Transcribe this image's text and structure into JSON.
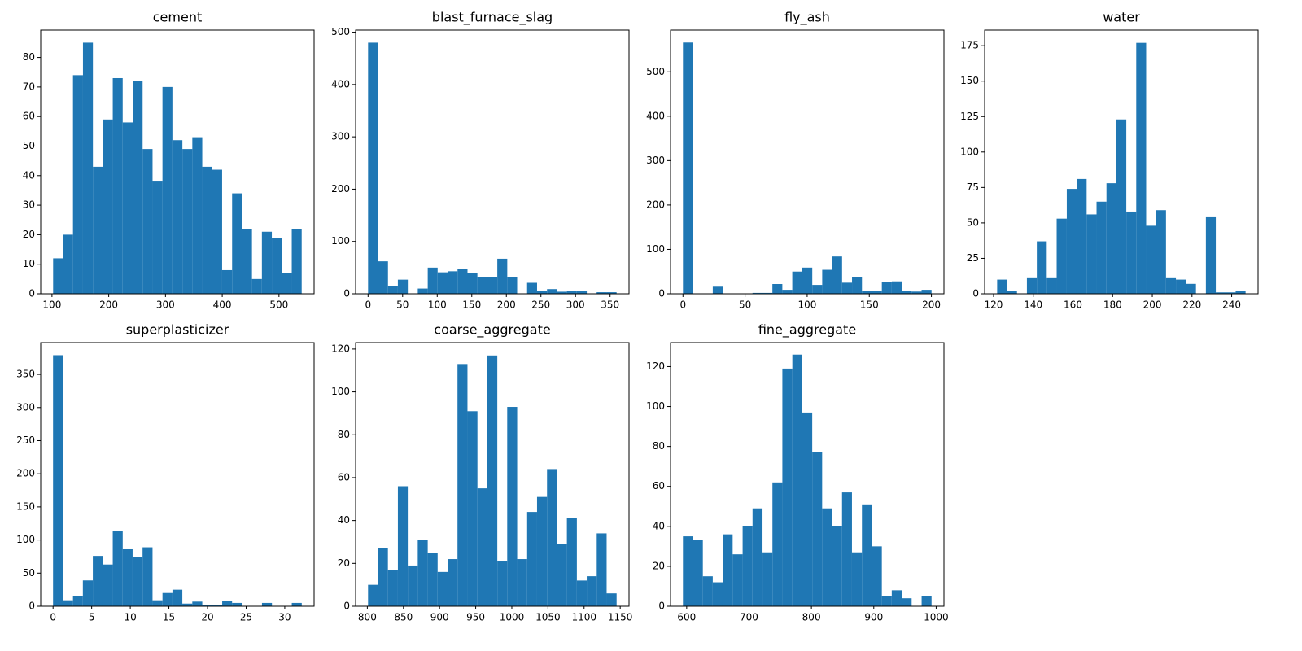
{
  "chart_data": [
    {
      "type": "histogram",
      "title": "cement",
      "color": "#1f77b4",
      "bins": [
        102,
        119.5,
        137.0,
        154.6,
        172.1,
        189.6,
        207.1,
        224.6,
        242.2,
        259.7,
        277.2,
        294.7,
        312.2,
        329.8,
        347.3,
        364.8,
        382.3,
        399.8,
        417.4,
        434.9,
        452.4,
        469.9,
        487.4,
        505.0,
        522.5,
        540.0
      ],
      "values": [
        12,
        20,
        74,
        85,
        43,
        59,
        73,
        58,
        72,
        49,
        38,
        70,
        52,
        49,
        53,
        43,
        42,
        8,
        34,
        22,
        5,
        21,
        19,
        7,
        22
      ],
      "xlim": [
        80.1,
        561.9
      ],
      "xticks": [
        100,
        200,
        300,
        400,
        500
      ],
      "ylim": [
        0,
        89.25
      ],
      "yticks": [
        0,
        10,
        20,
        30,
        40,
        50,
        60,
        70,
        80
      ]
    },
    {
      "type": "histogram",
      "title": "blast_furnace_slag",
      "color": "#1f77b4",
      "bins": [
        0,
        14.4,
        28.8,
        43.1,
        57.5,
        71.9,
        86.3,
        100.6,
        115.0,
        129.4,
        143.8,
        158.1,
        172.5,
        186.9,
        201.3,
        215.6,
        230.0,
        244.4,
        258.8,
        273.1,
        287.5,
        301.9,
        316.3,
        330.6,
        345.0,
        359.4
      ],
      "values": [
        480,
        62,
        14,
        27,
        0,
        10,
        50,
        41,
        43,
        48,
        39,
        32,
        32,
        67,
        32,
        0,
        21,
        6,
        9,
        4,
        6,
        6,
        0,
        3,
        3
      ],
      "xlim": [
        -18,
        377.4
      ],
      "xticks": [
        0,
        50,
        100,
        150,
        200,
        250,
        300,
        350
      ],
      "ylim": [
        0,
        504
      ],
      "yticks": [
        0,
        100,
        200,
        300,
        400,
        500
      ]
    },
    {
      "type": "histogram",
      "title": "fly_ash",
      "color": "#1f77b4",
      "bins": [
        0,
        8.0,
        16.0,
        24.0,
        32.0,
        40.0,
        48.0,
        56.0,
        64.0,
        72.0,
        80.0,
        88.0,
        96.0,
        104.1,
        112.1,
        120.1,
        128.1,
        136.1,
        144.1,
        152.1,
        160.1,
        168.1,
        176.1,
        184.1,
        192.1,
        200.1
      ],
      "values": [
        566,
        0,
        0,
        16,
        0,
        0,
        0,
        2,
        2,
        22,
        9,
        50,
        59,
        20,
        54,
        84,
        25,
        37,
        6,
        6,
        27,
        28,
        7,
        5,
        9
      ],
      "xlim": [
        -10,
        210.1
      ],
      "xticks": [
        0,
        50,
        100,
        150,
        200
      ],
      "ylim": [
        0,
        594
      ],
      "yticks": [
        0,
        100,
        200,
        300,
        400,
        500
      ]
    },
    {
      "type": "histogram",
      "title": "water",
      "color": "#1f77b4",
      "bins": [
        121.8,
        126.8,
        131.8,
        136.8,
        141.8,
        146.8,
        151.8,
        156.9,
        161.9,
        166.9,
        171.9,
        176.9,
        181.9,
        186.9,
        191.9,
        196.9,
        201.9,
        206.9,
        211.9,
        216.9,
        222.0,
        227.0,
        232.0,
        237.0,
        242.0,
        247.0
      ],
      "values": [
        10,
        2,
        0,
        11,
        37,
        11,
        53,
        74,
        81,
        56,
        65,
        78,
        123,
        58,
        177,
        48,
        59,
        11,
        10,
        7,
        0,
        54,
        1,
        1,
        2
      ],
      "xlim": [
        115.5,
        253.3
      ],
      "xticks": [
        120,
        140,
        160,
        180,
        200,
        220,
        240
      ],
      "ylim": [
        0,
        186
      ],
      "yticks": [
        0,
        25,
        50,
        75,
        100,
        125,
        150,
        175
      ]
    },
    {
      "type": "histogram",
      "title": "superplasticizer",
      "color": "#1f77b4",
      "bins": [
        0,
        1.29,
        2.58,
        3.86,
        5.15,
        6.44,
        7.73,
        9.02,
        10.3,
        11.59,
        12.88,
        14.17,
        15.46,
        16.74,
        18.03,
        19.32,
        20.61,
        21.9,
        23.18,
        24.47,
        25.76,
        27.05,
        28.34,
        29.62,
        30.91,
        32.2
      ],
      "values": [
        379,
        9,
        15,
        39,
        76,
        63,
        113,
        86,
        74,
        89,
        9,
        20,
        25,
        4,
        7,
        2,
        2,
        8,
        5,
        0,
        0,
        5,
        0,
        0,
        5
      ],
      "xlim": [
        -1.6,
        33.8
      ],
      "xticks": [
        0,
        5,
        10,
        15,
        20,
        25,
        30
      ],
      "ylim": [
        0,
        398
      ],
      "yticks": [
        0,
        50,
        100,
        150,
        200,
        250,
        300,
        350
      ]
    },
    {
      "type": "histogram",
      "title": "coarse_aggregate",
      "color": "#1f77b4",
      "bins": [
        801,
        814.8,
        828.5,
        842.3,
        856.0,
        869.8,
        883.6,
        897.3,
        911.1,
        924.8,
        938.6,
        952.4,
        966.1,
        979.9,
        993.6,
        1007.4,
        1021.2,
        1034.9,
        1048.7,
        1062.4,
        1076.2,
        1090.0,
        1103.7,
        1117.5,
        1131.2,
        1145.0
      ],
      "values": [
        10,
        27,
        17,
        56,
        19,
        31,
        25,
        16,
        22,
        113,
        91,
        55,
        117,
        21,
        93,
        22,
        44,
        51,
        64,
        29,
        41,
        12,
        14,
        34,
        6
      ],
      "xlim": [
        783.8,
        1162.2
      ],
      "xticks": [
        800,
        850,
        900,
        950,
        1000,
        1050,
        1100,
        1150
      ],
      "ylim": [
        0,
        123
      ],
      "yticks": [
        0,
        20,
        40,
        60,
        80,
        100,
        120
      ]
    },
    {
      "type": "histogram",
      "title": "fine_aggregate",
      "color": "#1f77b4",
      "bins": [
        594,
        609.9,
        625.9,
        641.8,
        657.8,
        673.7,
        689.7,
        705.6,
        721.6,
        737.5,
        753.4,
        769.4,
        785.3,
        801.3,
        817.2,
        833.2,
        849.1,
        865.0,
        881.0,
        896.9,
        912.9,
        928.8,
        944.8,
        960.7,
        976.7,
        992.6
      ],
      "values": [
        35,
        33,
        15,
        12,
        36,
        26,
        40,
        49,
        27,
        62,
        119,
        126,
        97,
        77,
        49,
        40,
        57,
        27,
        51,
        30,
        5,
        8,
        4,
        0,
        5
      ],
      "xlim": [
        574.1,
        1012.5
      ],
      "xticks": [
        600,
        700,
        800,
        900,
        1000
      ],
      "ylim": [
        0,
        132
      ],
      "yticks": [
        0,
        20,
        40,
        60,
        80,
        100,
        120
      ]
    }
  ]
}
